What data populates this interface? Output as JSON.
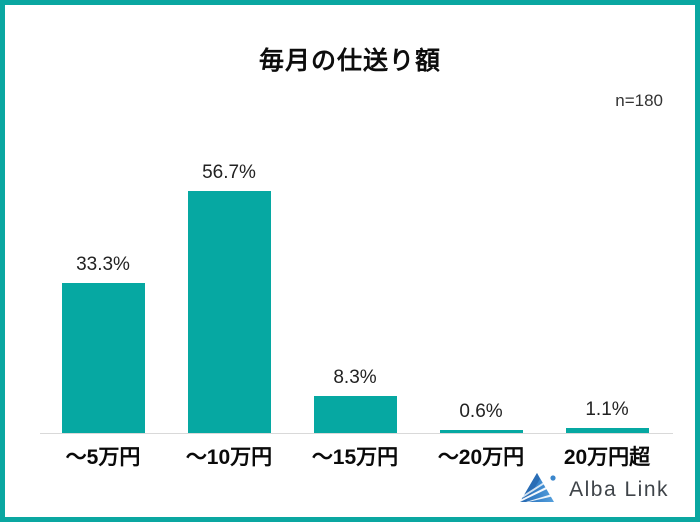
{
  "frame": {
    "border_color": "#0aa7a1",
    "background_color": "#ffffff"
  },
  "header": {
    "title": "毎月の仕送り額",
    "sample_size_label": "n=180"
  },
  "chart_data": {
    "type": "bar",
    "title": "毎月の仕送り額",
    "categories": [
      "～5万円",
      "～10万円",
      "～15万円",
      "～20万円",
      "20万円超"
    ],
    "values": [
      33.3,
      56.7,
      8.3,
      0.6,
      1.1
    ],
    "value_labels": [
      "33.3%",
      "56.7%",
      "8.3%",
      "0.6%",
      "1.1%"
    ],
    "unit": "%",
    "sample_size": "n=180",
    "bar_color": "#06a8a2",
    "axis_line_color": "#d9d9d9",
    "ylim": [
      0,
      60
    ],
    "grid": false,
    "legend": "none",
    "value_label_position": "above-bar"
  },
  "footer": {
    "logo_text": "Alba Link",
    "logo_icon": "alba-link-triangle-logo",
    "logo_colors": {
      "dark_blue": "#2a6db5",
      "light_blue": "#56a0dc",
      "dot_blue": "#3b86cc"
    }
  }
}
